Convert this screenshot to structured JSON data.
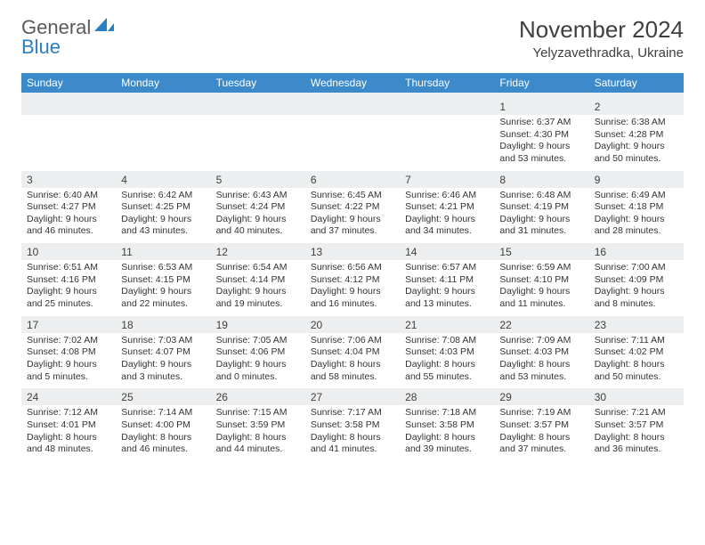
{
  "logo": {
    "word1": "General",
    "word2": "Blue"
  },
  "title": "November 2024",
  "location": "Yelyzavethradka, Ukraine",
  "day_headers": [
    "Sunday",
    "Monday",
    "Tuesday",
    "Wednesday",
    "Thursday",
    "Friday",
    "Saturday"
  ],
  "colors": {
    "header_bg": "#3c8ac9",
    "header_text": "#ffffff",
    "daynum_bg": "#eceeef",
    "body_text": "#333333",
    "logo_blue": "#2a7fc4",
    "logo_gray": "#5a5a5a"
  },
  "weeks": [
    [
      {
        "n": "",
        "sr": "",
        "ss": "",
        "dl": ""
      },
      {
        "n": "",
        "sr": "",
        "ss": "",
        "dl": ""
      },
      {
        "n": "",
        "sr": "",
        "ss": "",
        "dl": ""
      },
      {
        "n": "",
        "sr": "",
        "ss": "",
        "dl": ""
      },
      {
        "n": "",
        "sr": "",
        "ss": "",
        "dl": ""
      },
      {
        "n": "1",
        "sr": "Sunrise: 6:37 AM",
        "ss": "Sunset: 4:30 PM",
        "dl": "Daylight: 9 hours and 53 minutes."
      },
      {
        "n": "2",
        "sr": "Sunrise: 6:38 AM",
        "ss": "Sunset: 4:28 PM",
        "dl": "Daylight: 9 hours and 50 minutes."
      }
    ],
    [
      {
        "n": "3",
        "sr": "Sunrise: 6:40 AM",
        "ss": "Sunset: 4:27 PM",
        "dl": "Daylight: 9 hours and 46 minutes."
      },
      {
        "n": "4",
        "sr": "Sunrise: 6:42 AM",
        "ss": "Sunset: 4:25 PM",
        "dl": "Daylight: 9 hours and 43 minutes."
      },
      {
        "n": "5",
        "sr": "Sunrise: 6:43 AM",
        "ss": "Sunset: 4:24 PM",
        "dl": "Daylight: 9 hours and 40 minutes."
      },
      {
        "n": "6",
        "sr": "Sunrise: 6:45 AM",
        "ss": "Sunset: 4:22 PM",
        "dl": "Daylight: 9 hours and 37 minutes."
      },
      {
        "n": "7",
        "sr": "Sunrise: 6:46 AM",
        "ss": "Sunset: 4:21 PM",
        "dl": "Daylight: 9 hours and 34 minutes."
      },
      {
        "n": "8",
        "sr": "Sunrise: 6:48 AM",
        "ss": "Sunset: 4:19 PM",
        "dl": "Daylight: 9 hours and 31 minutes."
      },
      {
        "n": "9",
        "sr": "Sunrise: 6:49 AM",
        "ss": "Sunset: 4:18 PM",
        "dl": "Daylight: 9 hours and 28 minutes."
      }
    ],
    [
      {
        "n": "10",
        "sr": "Sunrise: 6:51 AM",
        "ss": "Sunset: 4:16 PM",
        "dl": "Daylight: 9 hours and 25 minutes."
      },
      {
        "n": "11",
        "sr": "Sunrise: 6:53 AM",
        "ss": "Sunset: 4:15 PM",
        "dl": "Daylight: 9 hours and 22 minutes."
      },
      {
        "n": "12",
        "sr": "Sunrise: 6:54 AM",
        "ss": "Sunset: 4:14 PM",
        "dl": "Daylight: 9 hours and 19 minutes."
      },
      {
        "n": "13",
        "sr": "Sunrise: 6:56 AM",
        "ss": "Sunset: 4:12 PM",
        "dl": "Daylight: 9 hours and 16 minutes."
      },
      {
        "n": "14",
        "sr": "Sunrise: 6:57 AM",
        "ss": "Sunset: 4:11 PM",
        "dl": "Daylight: 9 hours and 13 minutes."
      },
      {
        "n": "15",
        "sr": "Sunrise: 6:59 AM",
        "ss": "Sunset: 4:10 PM",
        "dl": "Daylight: 9 hours and 11 minutes."
      },
      {
        "n": "16",
        "sr": "Sunrise: 7:00 AM",
        "ss": "Sunset: 4:09 PM",
        "dl": "Daylight: 9 hours and 8 minutes."
      }
    ],
    [
      {
        "n": "17",
        "sr": "Sunrise: 7:02 AM",
        "ss": "Sunset: 4:08 PM",
        "dl": "Daylight: 9 hours and 5 minutes."
      },
      {
        "n": "18",
        "sr": "Sunrise: 7:03 AM",
        "ss": "Sunset: 4:07 PM",
        "dl": "Daylight: 9 hours and 3 minutes."
      },
      {
        "n": "19",
        "sr": "Sunrise: 7:05 AM",
        "ss": "Sunset: 4:06 PM",
        "dl": "Daylight: 9 hours and 0 minutes."
      },
      {
        "n": "20",
        "sr": "Sunrise: 7:06 AM",
        "ss": "Sunset: 4:04 PM",
        "dl": "Daylight: 8 hours and 58 minutes."
      },
      {
        "n": "21",
        "sr": "Sunrise: 7:08 AM",
        "ss": "Sunset: 4:03 PM",
        "dl": "Daylight: 8 hours and 55 minutes."
      },
      {
        "n": "22",
        "sr": "Sunrise: 7:09 AM",
        "ss": "Sunset: 4:03 PM",
        "dl": "Daylight: 8 hours and 53 minutes."
      },
      {
        "n": "23",
        "sr": "Sunrise: 7:11 AM",
        "ss": "Sunset: 4:02 PM",
        "dl": "Daylight: 8 hours and 50 minutes."
      }
    ],
    [
      {
        "n": "24",
        "sr": "Sunrise: 7:12 AM",
        "ss": "Sunset: 4:01 PM",
        "dl": "Daylight: 8 hours and 48 minutes."
      },
      {
        "n": "25",
        "sr": "Sunrise: 7:14 AM",
        "ss": "Sunset: 4:00 PM",
        "dl": "Daylight: 8 hours and 46 minutes."
      },
      {
        "n": "26",
        "sr": "Sunrise: 7:15 AM",
        "ss": "Sunset: 3:59 PM",
        "dl": "Daylight: 8 hours and 44 minutes."
      },
      {
        "n": "27",
        "sr": "Sunrise: 7:17 AM",
        "ss": "Sunset: 3:58 PM",
        "dl": "Daylight: 8 hours and 41 minutes."
      },
      {
        "n": "28",
        "sr": "Sunrise: 7:18 AM",
        "ss": "Sunset: 3:58 PM",
        "dl": "Daylight: 8 hours and 39 minutes."
      },
      {
        "n": "29",
        "sr": "Sunrise: 7:19 AM",
        "ss": "Sunset: 3:57 PM",
        "dl": "Daylight: 8 hours and 37 minutes."
      },
      {
        "n": "30",
        "sr": "Sunrise: 7:21 AM",
        "ss": "Sunset: 3:57 PM",
        "dl": "Daylight: 8 hours and 36 minutes."
      }
    ]
  ]
}
